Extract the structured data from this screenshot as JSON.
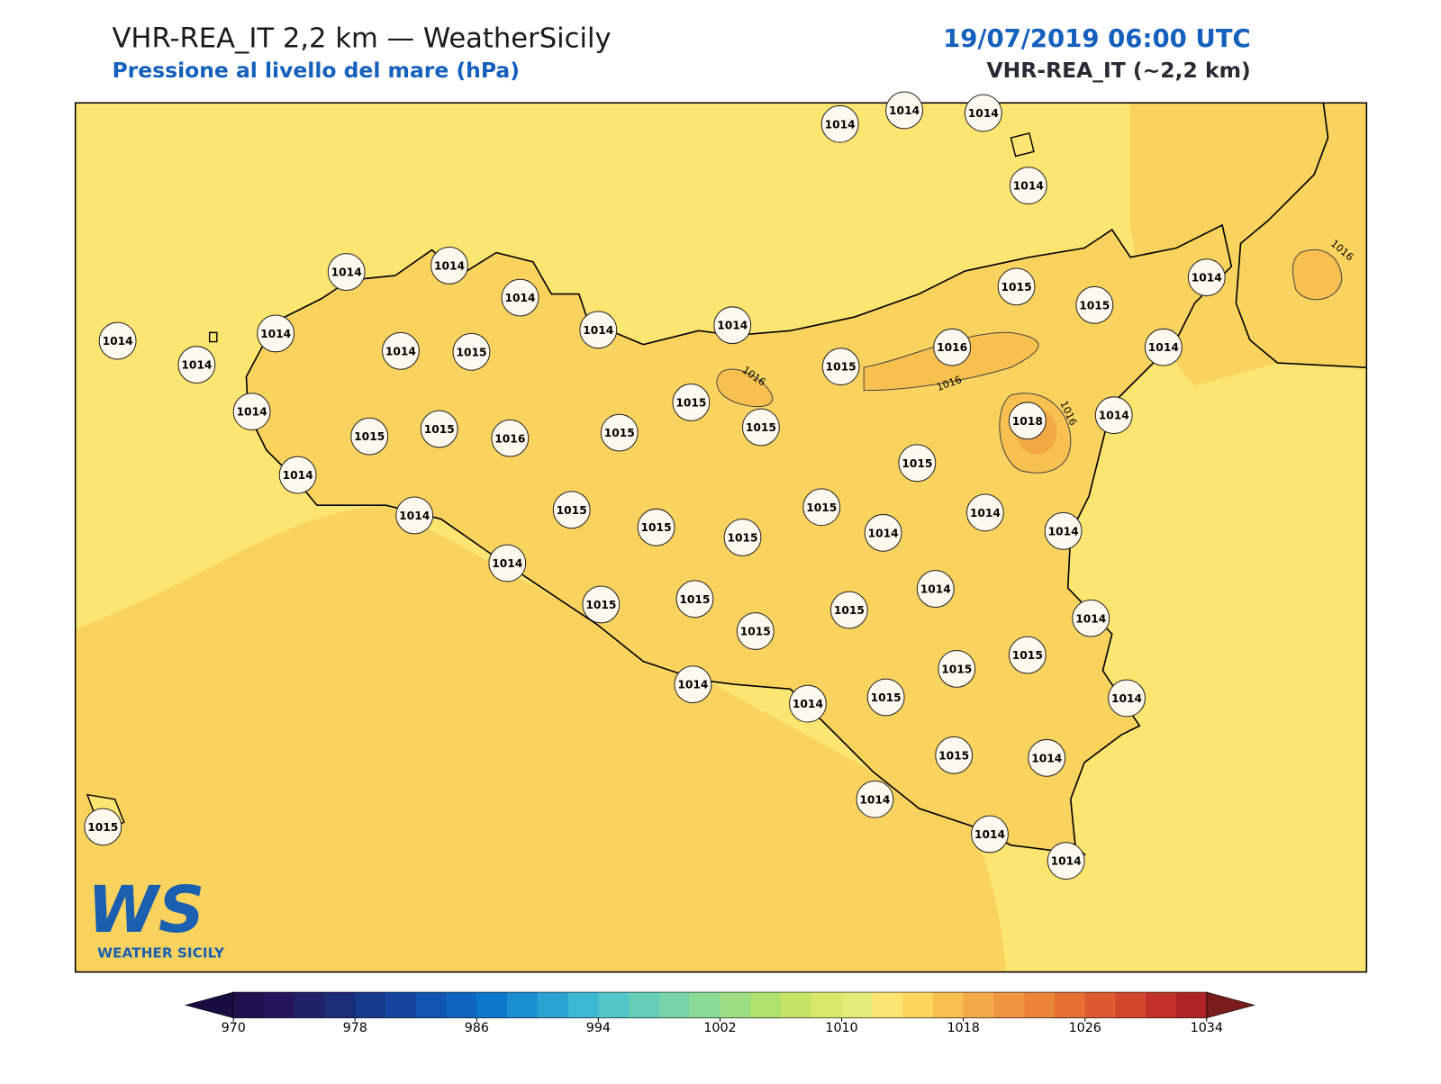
{
  "header": {
    "title": "VHR-REA_IT 2,2 km — WeatherSicily",
    "subtitle": "Pressione al livello del mare (hPa)",
    "date": "19/07/2019 06:00 UTC",
    "model": "VHR-REA_IT (~2,2 km)"
  },
  "map": {
    "stations": [
      1014,
      1014,
      1014,
      1014,
      1014,
      1014,
      1014,
      1014,
      1014,
      1015,
      1015,
      1014,
      1014,
      1014,
      1014,
      1015,
      1014,
      1015,
      1016,
      1014,
      1015,
      1014,
      1015,
      1015,
      1016,
      1015,
      1015,
      1018,
      1014,
      1015,
      1014,
      1014,
      1015,
      1015,
      1015,
      1015,
      1014,
      1014,
      1014,
      1014,
      1015,
      1015,
      1015,
      1015,
      1014,
      1014,
      1015,
      1015,
      1014,
      1014,
      1015,
      1014,
      1015,
      1014,
      1014,
      1014,
      1014,
      1015
    ],
    "contour_labels": [
      1016,
      1016,
      1016,
      1016
    ]
  },
  "colorbar": {
    "lim": [
      970,
      1034
    ],
    "ticks": [
      970,
      978,
      986,
      994,
      1002,
      1010,
      1018,
      1026,
      1034
    ],
    "colors": [
      "#221150",
      "#23165c",
      "#1f2268",
      "#1b2c78",
      "#173a8c",
      "#1446a0",
      "#1155b0",
      "#0e66c0",
      "#0b78cc",
      "#1a8fd0",
      "#2aa3d2",
      "#3cb8d2",
      "#52c6c8",
      "#64ceb8",
      "#76d4a8",
      "#88da96",
      "#9cde84",
      "#b0e26e",
      "#c6e566",
      "#d8e86a",
      "#e3ea77",
      "#fce570",
      "#fdd65e",
      "#f8c050",
      "#f4aa48",
      "#f09640",
      "#ec8438",
      "#e67032",
      "#de5a2e",
      "#d2462c",
      "#c2322a",
      "#b02428"
    ],
    "under": "#1a0c40",
    "over": "#7a1c1c"
  },
  "logo": {
    "mark": "WS",
    "name": "WEATHER SICILY"
  }
}
